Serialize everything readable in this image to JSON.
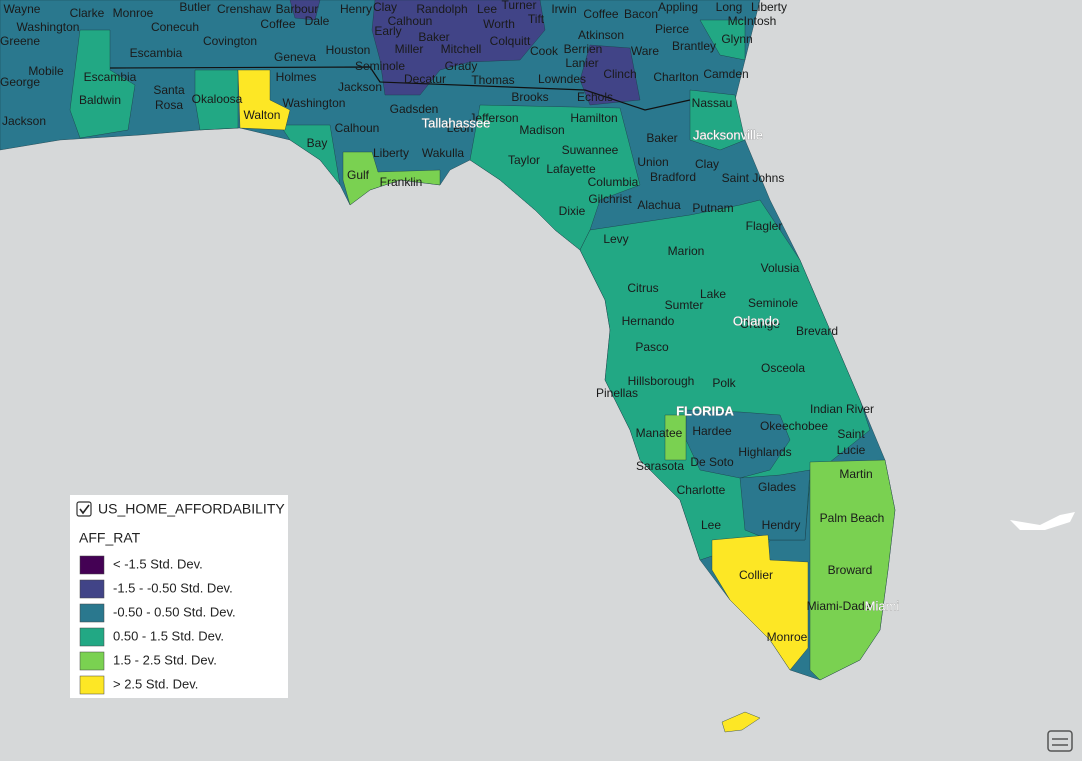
{
  "map": {
    "labels": [
      "Wayne",
      "Clarke",
      "Monroe",
      "Butler",
      "Crenshaw",
      "Barbour",
      "Henry",
      "Clay",
      "Randolph",
      "Lee",
      "Turner",
      "Irwin",
      "Coffee",
      "Bacon",
      "Appling",
      "Long",
      "Liberty",
      "McIntosh",
      "Washington",
      "Conecuh",
      "Coffee",
      "Dale",
      "Calhoun",
      "Worth",
      "Tift",
      "Pierce",
      "Greene",
      "Covington",
      "Early",
      "Baker",
      "Colquitt",
      "Atkinson",
      "Brantley",
      "Glynn",
      "Escambia",
      "Geneva",
      "Houston",
      "Miller",
      "Mitchell",
      "Cook",
      "Berrien",
      "Ware",
      "Mobile",
      "Seminole",
      "Grady",
      "Lanier",
      "Clinch",
      "Charlton",
      "Camden",
      "George",
      "Escambia",
      "Santa",
      "Rosa",
      "Holmes",
      "Jackson",
      "Decatur",
      "Thomas",
      "Lowndes",
      "Brooks",
      "Echols",
      "Nassau",
      "Baldwin",
      "Okaloosa",
      "Washington",
      "Jackson",
      "Walton",
      "Gadsden",
      "Leon",
      "Jefferson",
      "Madison",
      "Hamilton",
      "Baker",
      "Calhoun",
      "Bay",
      "Liberty",
      "Wakulla",
      "Suwannee",
      "Union",
      "Clay",
      "Gulf",
      "Franklin",
      "Taylor",
      "Lafayette",
      "Bradford",
      "Saint Johns",
      "Columbia",
      "Gilchrist",
      "Alachua",
      "Putnam",
      "Dixie",
      "Flagler",
      "Levy",
      "Marion",
      "Volusia",
      "Citrus",
      "Lake",
      "Sumter",
      "Seminole",
      "Hernando",
      "Orange",
      "Brevard",
      "Pasco",
      "Osceola",
      "Hillsborough",
      "Polk",
      "Pinellas",
      "Indian River",
      "Okeechobee",
      "Manatee",
      "Hardee",
      "Saint",
      "Lucie",
      "Highlands",
      "Sarasota",
      "De Soto",
      "Martin",
      "Charlotte",
      "Glades",
      "Palm Beach",
      "Lee",
      "Hendry",
      "Collier",
      "Broward",
      "Miami-Dade",
      "Monroe"
    ],
    "cities": [
      "Tallahassee",
      "Jacksonville",
      "Orlando",
      "Miami"
    ],
    "state": "FLORIDA"
  },
  "legend": {
    "layer": "US_HOME_AFFORDABILITY",
    "field": "AFF_RAT",
    "classes": [
      {
        "label": "< -1.5 Std. Dev.",
        "color": "#440154"
      },
      {
        "label": "-1.5 - -0.50 Std. Dev.",
        "color": "#414487"
      },
      {
        "label": "-0.50 - 0.50 Std. Dev.",
        "color": "#2a788e"
      },
      {
        "label": "0.50 - 1.5 Std. Dev.",
        "color": "#22a884"
      },
      {
        "label": "1.5 - 2.5 Std. Dev.",
        "color": "#7ad151"
      },
      {
        "label": "> 2.5 Std. Dev.",
        "color": "#fde725"
      }
    ]
  }
}
